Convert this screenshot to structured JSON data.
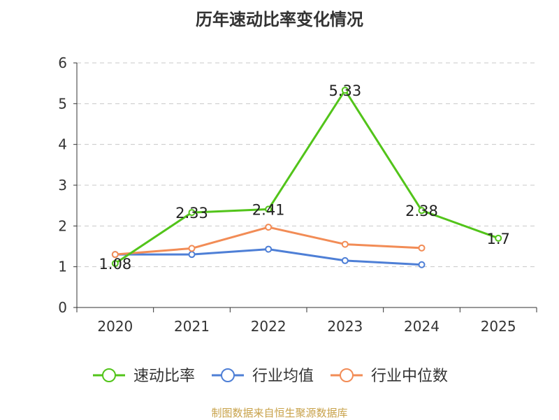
{
  "chart_data": {
    "type": "line",
    "title": "历年速动比率变化情况",
    "categories": [
      "2020",
      "2021",
      "2022",
      "2023",
      "2024",
      "2025"
    ],
    "ylim": [
      0,
      6
    ],
    "yticks": [
      0,
      1,
      2,
      3,
      4,
      5,
      6
    ],
    "grid": true,
    "legend_position": "bottom",
    "series": [
      {
        "name": "速动比率",
        "color": "#52c41a",
        "values": [
          1.08,
          2.33,
          2.41,
          5.33,
          2.38,
          1.7
        ],
        "labels": [
          "1.08",
          "2.33",
          "2.41",
          "5.33",
          "2.38",
          "1.7"
        ]
      },
      {
        "name": "行业均值",
        "color": "#4e7fd6",
        "values": [
          1.3,
          1.3,
          1.43,
          1.15,
          1.05,
          null
        ]
      },
      {
        "name": "行业中位数",
        "color": "#f28c56",
        "values": [
          1.3,
          1.45,
          1.97,
          1.55,
          1.46,
          null
        ]
      }
    ]
  },
  "footer": {
    "source": "制图数据来自恒生聚源数据库"
  }
}
